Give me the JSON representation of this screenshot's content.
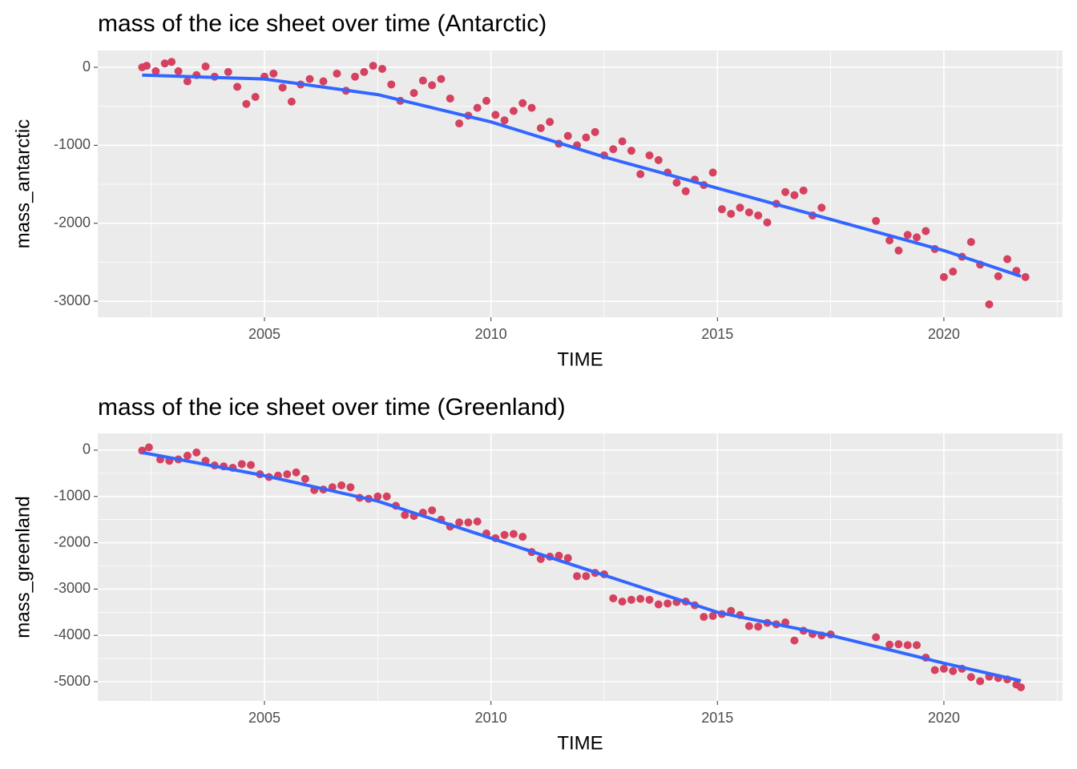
{
  "chart_data": [
    {
      "type": "scatter",
      "title": "mass of the ice sheet over time (Antarctic)",
      "x_label": "TIME",
      "y_label": "mass_antarctic",
      "x": [
        2002.3,
        2002.4,
        2002.6,
        2002.8,
        2002.95,
        2003.1,
        2003.3,
        2003.5,
        2003.7,
        2003.9,
        2004.2,
        2004.4,
        2004.6,
        2004.8,
        2005.0,
        2005.2,
        2005.4,
        2005.6,
        2005.8,
        2006.0,
        2006.3,
        2006.6,
        2006.8,
        2007.0,
        2007.2,
        2007.4,
        2007.6,
        2007.8,
        2008.0,
        2008.3,
        2008.5,
        2008.7,
        2008.9,
        2009.1,
        2009.3,
        2009.5,
        2009.7,
        2009.9,
        2010.1,
        2010.3,
        2010.5,
        2010.7,
        2010.9,
        2011.1,
        2011.3,
        2011.5,
        2011.7,
        2011.9,
        2012.1,
        2012.3,
        2012.5,
        2012.7,
        2012.9,
        2013.1,
        2013.3,
        2013.5,
        2013.7,
        2013.9,
        2014.1,
        2014.3,
        2014.5,
        2014.7,
        2014.9,
        2015.1,
        2015.3,
        2015.5,
        2015.7,
        2015.9,
        2016.1,
        2016.3,
        2016.5,
        2016.7,
        2016.9,
        2017.1,
        2017.3,
        2018.5,
        2018.8,
        2019.0,
        2019.2,
        2019.4,
        2019.6,
        2019.8,
        2020.0,
        2020.2,
        2020.4,
        2020.6,
        2020.8,
        2021.0,
        2021.2,
        2021.4,
        2021.6,
        2021.8
      ],
      "values": [
        0,
        20,
        -50,
        50,
        70,
        -50,
        -180,
        -100,
        10,
        -120,
        -60,
        -250,
        -470,
        -380,
        -120,
        -80,
        -260,
        -440,
        -220,
        -150,
        -180,
        -80,
        -300,
        -120,
        -60,
        20,
        -20,
        -220,
        -430,
        -330,
        -170,
        -230,
        -150,
        -400,
        -720,
        -620,
        -520,
        -430,
        -610,
        -680,
        -560,
        -460,
        -520,
        -780,
        -700,
        -980,
        -880,
        -1000,
        -900,
        -830,
        -1130,
        -1050,
        -950,
        -1070,
        -1370,
        -1130,
        -1190,
        -1350,
        -1480,
        -1590,
        -1440,
        -1510,
        -1350,
        -1820,
        -1880,
        -1800,
        -1860,
        -1900,
        -1990,
        -1750,
        -1600,
        -1640,
        -1580,
        -1900,
        -1800,
        -1970,
        -2220,
        -2350,
        -2150,
        -2180,
        -2100,
        -2330,
        -2690,
        -2620,
        -2430,
        -2240,
        -2530,
        -3040,
        -2680,
        -2460,
        -2610,
        -2690
      ],
      "color": "#d6415f",
      "trend": {
        "x": [
          2002.3,
          2005,
          2007.5,
          2010,
          2012.5,
          2015,
          2017.5,
          2020,
          2021.7
        ],
        "values": [
          -100,
          -150,
          -350,
          -700,
          -1150,
          -1550,
          -1950,
          -2350,
          -2680
        ],
        "color": "#3366ff"
      },
      "xlim": [
        2001.32,
        2022.62
      ],
      "ylim": [
        -3205,
        216
      ],
      "xticks": [
        2005,
        2010,
        2015,
        2020
      ],
      "yticks": [
        0,
        -1000,
        -2000,
        -3000
      ],
      "grid": true
    },
    {
      "type": "scatter",
      "title": "mass of the ice sheet over time (Greenland)",
      "x_label": "TIME",
      "y_label": "mass_greenland",
      "x": [
        2002.3,
        2002.45,
        2002.7,
        2002.9,
        2003.1,
        2003.3,
        2003.5,
        2003.7,
        2003.9,
        2004.1,
        2004.3,
        2004.5,
        2004.7,
        2004.9,
        2005.1,
        2005.3,
        2005.5,
        2005.7,
        2005.9,
        2006.1,
        2006.3,
        2006.5,
        2006.7,
        2006.9,
        2007.1,
        2007.3,
        2007.5,
        2007.7,
        2007.9,
        2008.1,
        2008.3,
        2008.5,
        2008.7,
        2008.9,
        2009.1,
        2009.3,
        2009.5,
        2009.7,
        2009.9,
        2010.1,
        2010.3,
        2010.5,
        2010.7,
        2010.9,
        2011.1,
        2011.3,
        2011.5,
        2011.7,
        2011.9,
        2012.1,
        2012.3,
        2012.5,
        2012.7,
        2012.9,
        2013.1,
        2013.3,
        2013.5,
        2013.7,
        2013.9,
        2014.1,
        2014.3,
        2014.5,
        2014.7,
        2014.9,
        2015.1,
        2015.3,
        2015.5,
        2015.7,
        2015.9,
        2016.1,
        2016.3,
        2016.5,
        2016.7,
        2016.9,
        2017.1,
        2017.3,
        2017.5,
        2018.5,
        2018.8,
        2019.0,
        2019.2,
        2019.4,
        2019.6,
        2019.8,
        2020.0,
        2020.2,
        2020.4,
        2020.6,
        2020.8,
        2021.0,
        2021.2,
        2021.4,
        2021.6,
        2021.7
      ],
      "values": [
        -10,
        60,
        -200,
        -230,
        -200,
        -120,
        -50,
        -230,
        -330,
        -350,
        -380,
        -300,
        -320,
        -520,
        -580,
        -550,
        -520,
        -480,
        -620,
        -860,
        -850,
        -800,
        -760,
        -800,
        -1030,
        -1050,
        -1000,
        -1000,
        -1200,
        -1400,
        -1420,
        -1350,
        -1300,
        -1500,
        -1650,
        -1560,
        -1560,
        -1540,
        -1800,
        -1900,
        -1830,
        -1810,
        -1870,
        -2200,
        -2350,
        -2300,
        -2280,
        -2330,
        -2720,
        -2720,
        -2650,
        -2680,
        -3200,
        -3270,
        -3230,
        -3210,
        -3230,
        -3330,
        -3310,
        -3280,
        -3270,
        -3350,
        -3600,
        -3580,
        -3540,
        -3470,
        -3560,
        -3800,
        -3810,
        -3730,
        -3760,
        -3720,
        -4110,
        -3900,
        -3970,
        -4000,
        -3980,
        -4040,
        -4200,
        -4190,
        -4210,
        -4210,
        -4480,
        -4750,
        -4720,
        -4770,
        -4720,
        -4900,
        -4990,
        -4890,
        -4920,
        -4950,
        -5060,
        -5120
      ],
      "color": "#d6415f",
      "trend": {
        "x": [
          2002.3,
          2005,
          2007.5,
          2010,
          2012.5,
          2015,
          2017.5,
          2020,
          2021.7
        ],
        "values": [
          -50,
          -550,
          -1100,
          -1900,
          -2700,
          -3500,
          -4000,
          -4600,
          -4980
        ],
        "color": "#3366ff"
      },
      "xlim": [
        2001.32,
        2022.62
      ],
      "ylim": [
        -5415,
        363
      ],
      "xticks": [
        2005,
        2010,
        2015,
        2020
      ],
      "yticks": [
        0,
        -1000,
        -2000,
        -3000,
        -4000,
        -5000
      ],
      "grid": true
    }
  ]
}
